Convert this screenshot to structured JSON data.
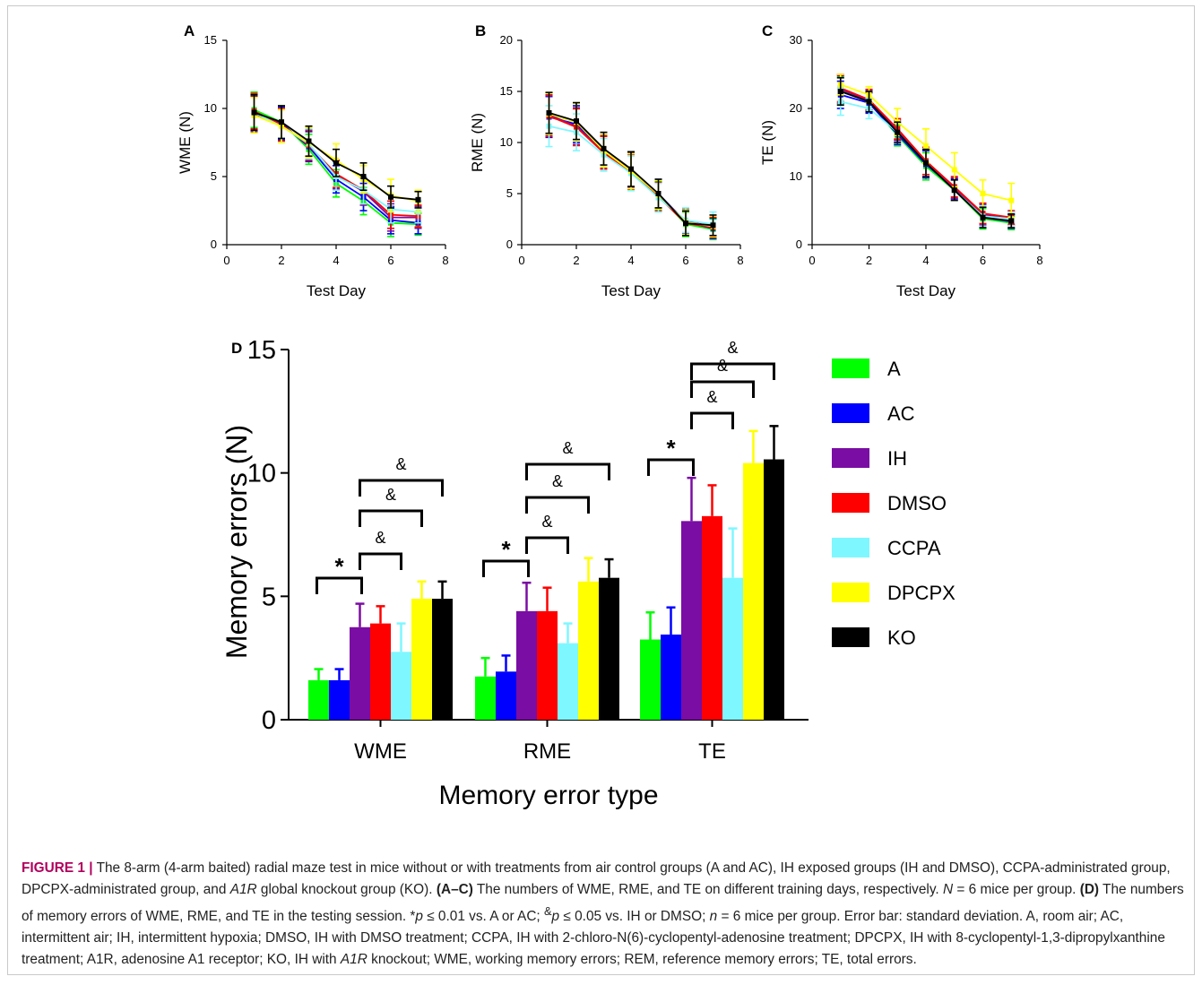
{
  "colors": {
    "A": "#00ff00",
    "AC": "#0000ff",
    "IH": "#7a0da3",
    "DMSO": "#ff0000",
    "CCPA": "#7ff7ff",
    "DPCPX": "#ffff00",
    "KO": "#000000"
  },
  "chart_data": [
    {
      "panel": "A",
      "type": "line",
      "ylabel": "WME (N)",
      "xlabel": "Test Day",
      "xlim": [
        0,
        8
      ],
      "ylim": [
        0,
        15
      ],
      "xticks": [
        "0",
        "2",
        "4",
        "6",
        "8"
      ],
      "yticks": [
        "0",
        "5",
        "10",
        "15"
      ],
      "x": [
        1,
        2,
        3,
        4,
        5,
        6,
        7
      ],
      "series": [
        {
          "name": "A",
          "values": [
            9.9,
            9.0,
            7.0,
            4.5,
            3.2,
            1.6,
            1.5
          ],
          "sd": [
            1.3,
            1.2,
            1.1,
            1.0,
            1.0,
            1.0,
            0.8
          ]
        },
        {
          "name": "AC",
          "values": [
            9.6,
            8.9,
            7.2,
            4.8,
            3.5,
            1.8,
            1.6
          ],
          "sd": [
            1.3,
            1.2,
            1.1,
            1.0,
            1.0,
            1.0,
            0.8
          ]
        },
        {
          "name": "IH",
          "values": [
            9.6,
            8.8,
            7.3,
            5.1,
            3.9,
            2.0,
            2.0
          ],
          "sd": [
            1.3,
            1.2,
            1.1,
            1.0,
            1.0,
            1.0,
            0.8
          ]
        },
        {
          "name": "DMSO",
          "values": [
            9.8,
            8.8,
            7.3,
            5.2,
            4.0,
            2.2,
            2.1
          ],
          "sd": [
            1.3,
            1.2,
            1.1,
            1.0,
            1.0,
            1.0,
            0.8
          ]
        },
        {
          "name": "CCPA",
          "values": [
            9.7,
            8.7,
            7.4,
            5.0,
            4.0,
            2.6,
            2.4
          ],
          "sd": [
            1.3,
            1.2,
            1.1,
            1.0,
            1.0,
            1.0,
            0.8
          ]
        },
        {
          "name": "DPCPX",
          "values": [
            9.5,
            8.7,
            7.5,
            6.2,
            4.8,
            3.6,
            3.2
          ],
          "sd": [
            1.3,
            1.2,
            1.1,
            1.2,
            1.0,
            1.2,
            0.8
          ]
        },
        {
          "name": "KO",
          "values": [
            9.7,
            9.0,
            7.6,
            6.0,
            5.0,
            3.5,
            3.3
          ],
          "sd": [
            1.3,
            1.2,
            1.1,
            1.0,
            1.0,
            0.8,
            0.6
          ]
        }
      ]
    },
    {
      "panel": "B",
      "type": "line",
      "ylabel": "RME (N)",
      "xlabel": "Test Day",
      "xlim": [
        0,
        8
      ],
      "ylim": [
        0,
        20
      ],
      "xticks": [
        "0",
        "2",
        "4",
        "6",
        "8"
      ],
      "yticks": [
        "0",
        "5",
        "10",
        "15",
        "20"
      ],
      "x": [
        1,
        2,
        3,
        4,
        5,
        6,
        7
      ],
      "series": [
        {
          "name": "A",
          "values": [
            12.8,
            12.0,
            9.0,
            7.0,
            4.8,
            2.0,
            1.5
          ],
          "sd": [
            2.0,
            1.8,
            1.6,
            1.7,
            1.4,
            1.2,
            1.0
          ]
        },
        {
          "name": "AC",
          "values": [
            12.5,
            11.8,
            9.2,
            7.2,
            5.0,
            2.2,
            1.6
          ],
          "sd": [
            2.0,
            1.8,
            1.6,
            1.7,
            1.4,
            1.2,
            1.0
          ]
        },
        {
          "name": "IH",
          "values": [
            12.7,
            11.6,
            9.1,
            7.3,
            4.9,
            2.3,
            1.8
          ],
          "sd": [
            2.0,
            1.8,
            1.6,
            1.7,
            1.4,
            1.2,
            1.0
          ]
        },
        {
          "name": "DMSO",
          "values": [
            12.6,
            11.5,
            9.0,
            7.1,
            4.7,
            2.1,
            1.7
          ],
          "sd": [
            2.0,
            1.8,
            1.6,
            1.7,
            1.4,
            1.2,
            1.0
          ]
        },
        {
          "name": "CCPA",
          "values": [
            11.6,
            11.0,
            8.8,
            7.0,
            4.6,
            2.4,
            2.0
          ],
          "sd": [
            2.0,
            1.8,
            1.6,
            1.7,
            1.4,
            1.2,
            1.2
          ]
        },
        {
          "name": "DPCPX",
          "values": [
            12.8,
            12.0,
            9.2,
            7.2,
            4.9,
            2.2,
            1.8
          ],
          "sd": [
            2.0,
            1.8,
            1.6,
            1.7,
            1.4,
            1.2,
            1.0
          ]
        },
        {
          "name": "KO",
          "values": [
            12.9,
            12.1,
            9.4,
            7.4,
            5.0,
            2.1,
            1.9
          ],
          "sd": [
            2.0,
            1.8,
            1.6,
            1.7,
            1.4,
            1.2,
            1.0
          ]
        }
      ]
    },
    {
      "panel": "C",
      "type": "line",
      "ylabel": "TE (N)",
      "xlabel": "Test Day",
      "xlim": [
        0,
        8
      ],
      "ylim": [
        0,
        30
      ],
      "xticks": [
        "0",
        "2",
        "4",
        "6",
        "8"
      ],
      "yticks": [
        "0",
        "10",
        "20",
        "30"
      ],
      "x": [
        1,
        2,
        3,
        4,
        5,
        6,
        7
      ],
      "series": [
        {
          "name": "A",
          "values": [
            22.7,
            21.0,
            16.0,
            11.5,
            8.0,
            3.8,
            3.2
          ],
          "sd": [
            2.0,
            1.5,
            1.5,
            2.0,
            1.5,
            1.5,
            1.0
          ]
        },
        {
          "name": "AC",
          "values": [
            22.0,
            20.8,
            16.2,
            11.8,
            8.2,
            4.0,
            3.4
          ],
          "sd": [
            2.0,
            1.5,
            1.5,
            2.0,
            1.5,
            1.5,
            1.0
          ]
        },
        {
          "name": "IH",
          "values": [
            22.8,
            21.2,
            16.8,
            12.0,
            8.3,
            4.4,
            3.8
          ],
          "sd": [
            2.0,
            1.5,
            1.5,
            2.0,
            1.5,
            1.5,
            1.0
          ]
        },
        {
          "name": "DMSO",
          "values": [
            23.0,
            21.3,
            17.0,
            12.3,
            8.5,
            4.6,
            4.0
          ],
          "sd": [
            2.0,
            1.5,
            1.5,
            2.0,
            1.5,
            1.5,
            1.0
          ]
        },
        {
          "name": "CCPA",
          "values": [
            21.0,
            20.0,
            16.5,
            12.0,
            8.0,
            4.2,
            3.8
          ],
          "sd": [
            2.0,
            1.5,
            1.5,
            2.0,
            1.5,
            1.5,
            1.0
          ]
        },
        {
          "name": "DPCPX",
          "values": [
            23.5,
            22.0,
            18.0,
            14.5,
            11.0,
            7.5,
            6.5
          ],
          "sd": [
            1.5,
            1.2,
            2.0,
            2.5,
            2.5,
            2.0,
            2.5
          ]
        },
        {
          "name": "KO",
          "values": [
            22.5,
            21.0,
            16.5,
            12.0,
            8.0,
            4.0,
            3.5
          ],
          "sd": [
            2.0,
            1.5,
            1.5,
            2.0,
            1.5,
            1.5,
            1.0
          ]
        }
      ]
    },
    {
      "panel": "D",
      "type": "bar",
      "ylabel": "Memory errors (N)",
      "xlabel": "Memory error type",
      "ylim": [
        0,
        15
      ],
      "yticks": [
        "0",
        "5",
        "10",
        "15"
      ],
      "categories": [
        "WME",
        "RME",
        "TE"
      ],
      "series": [
        {
          "name": "A",
          "values": [
            1.6,
            1.75,
            3.25
          ],
          "sd": [
            0.45,
            0.75,
            1.1
          ]
        },
        {
          "name": "AC",
          "values": [
            1.6,
            1.95,
            3.45
          ],
          "sd": [
            0.45,
            0.65,
            1.1
          ]
        },
        {
          "name": "IH",
          "values": [
            3.75,
            4.4,
            8.05
          ],
          "sd": [
            0.95,
            1.15,
            1.75
          ]
        },
        {
          "name": "DMSO",
          "values": [
            3.9,
            4.4,
            8.25
          ],
          "sd": [
            0.7,
            0.95,
            1.25
          ]
        },
        {
          "name": "CCPA",
          "values": [
            2.75,
            3.1,
            5.75
          ],
          "sd": [
            1.15,
            0.8,
            2.0
          ]
        },
        {
          "name": "DPCPX",
          "values": [
            4.9,
            5.6,
            10.4
          ],
          "sd": [
            0.7,
            0.95,
            1.3
          ]
        },
        {
          "name": "KO",
          "values": [
            4.9,
            5.75,
            10.55
          ],
          "sd": [
            0.7,
            0.75,
            1.35
          ]
        }
      ],
      "annotations": {
        "star": "*",
        "amp": "&"
      }
    }
  ],
  "panel_labels": [
    "A",
    "B",
    "C",
    "D"
  ],
  "caption": {
    "label": "FIGURE 1",
    "sep": "|",
    "parts": [
      {
        "t": " The 8-arm (4-arm baited) radial maze test in mice without or with treatments from air control groups (A and AC), IH exposed groups (IH and DMSO), CCPA-administrated group, DPCPX-administrated group, and ",
        "s": ""
      },
      {
        "t": "A1R",
        "s": "i"
      },
      {
        "t": " global knockout group (KO). ",
        "s": ""
      },
      {
        "t": "(A–C)",
        "s": "b"
      },
      {
        "t": " The numbers of WME, RME, and TE on different training days, respectively. ",
        "s": ""
      },
      {
        "t": "N",
        "s": "i"
      },
      {
        "t": " = 6 mice per group. ",
        "s": ""
      },
      {
        "t": "(D)",
        "s": "b"
      },
      {
        "t": " The numbers of memory errors of WME, RME, and TE in the testing session. *",
        "s": ""
      },
      {
        "t": "p",
        "s": "i"
      },
      {
        "t": " ≤ 0.01 vs. A or AC; ",
        "s": ""
      },
      {
        "t": "&",
        "s": "sup"
      },
      {
        "t": "p",
        "s": "i"
      },
      {
        "t": " ≤ 0.05 vs. IH or DMSO; ",
        "s": ""
      },
      {
        "t": "n",
        "s": "i"
      },
      {
        "t": " = 6 mice per group. Error bar: standard deviation. A, room air; AC, intermittent air; IH, intermittent hypoxia; DMSO, IH with DMSO treatment; CCPA, IH with 2-chloro-N(6)-cyclopentyl-adenosine treatment; DPCPX, IH with 8-cyclopentyl-1,3-dipropylxanthine treatment; A1R, adenosine A1 receptor; KO, IH with ",
        "s": ""
      },
      {
        "t": "A1R",
        "s": "i"
      },
      {
        "t": " knockout; WME, working memory errors; REM, reference memory errors; TE, total errors.",
        "s": ""
      }
    ]
  }
}
